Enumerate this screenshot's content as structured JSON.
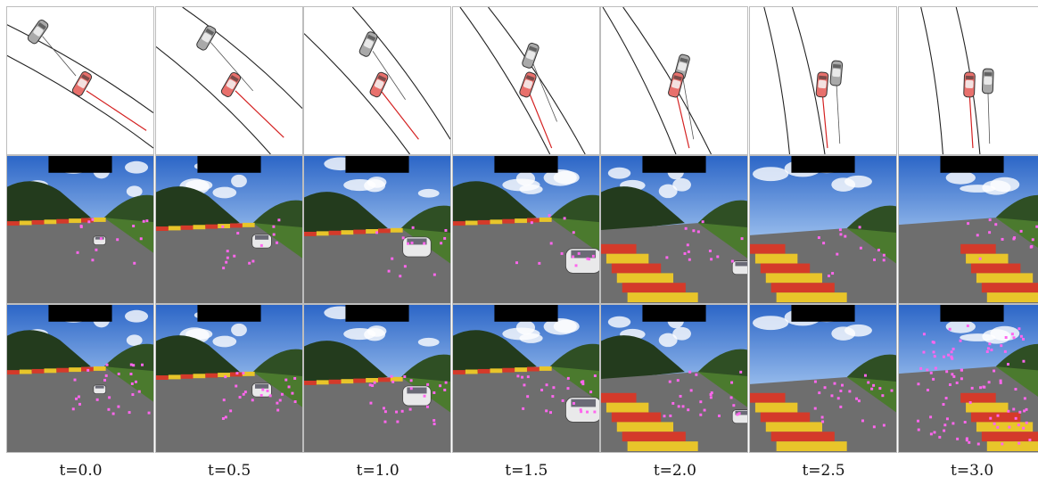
{
  "timesteps": [
    {
      "label": "t=0.0"
    },
    {
      "label": "t=0.5"
    },
    {
      "label": "t=1.0"
    },
    {
      "label": "t=1.5"
    },
    {
      "label": "t=2.0"
    },
    {
      "label": "t=2.5"
    },
    {
      "label": "t=3.0"
    }
  ],
  "row_contents": [
    "top-down-trajectory",
    "onboard-camera-frame",
    "predicted-camera-frame"
  ],
  "colors": {
    "ego_car": "#e8706c",
    "other_car": "#a9a9a9",
    "ego_trajectory": "#d42020",
    "track_border": "#222222",
    "overlay_highlight": "#ff66ee",
    "sky": "#3f7fd6",
    "track_asphalt": "#6e6e6e",
    "kerb_red": "#d43a2a",
    "kerb_yellow": "#e8c52a",
    "grass": "#4b7a2e",
    "trees": "#233b1d"
  }
}
